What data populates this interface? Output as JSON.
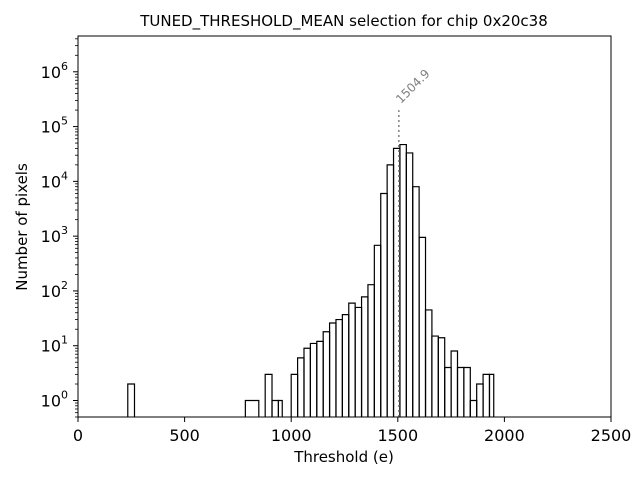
{
  "chart_data": {
    "type": "histogram",
    "title": "TUNED_THRESHOLD_MEAN selection for chip 0x20c38",
    "xlabel": "Threshold (e)",
    "ylabel": "Number of pixels",
    "xlim": [
      0,
      2500
    ],
    "ylim": [
      0.5,
      4500000
    ],
    "yscale": "log",
    "x_ticks": [
      "0",
      "500",
      "1000",
      "1500",
      "2000",
      "2500"
    ],
    "x_tick_values": [
      0,
      500,
      1000,
      1500,
      2000,
      2500
    ],
    "y_ticks": [
      {
        "base": "10",
        "exp": "0",
        "value": 1
      },
      {
        "base": "10",
        "exp": "1",
        "value": 10
      },
      {
        "base": "10",
        "exp": "2",
        "value": 100
      },
      {
        "base": "10",
        "exp": "3",
        "value": 1000
      },
      {
        "base": "10",
        "exp": "4",
        "value": 10000
      },
      {
        "base": "10",
        "exp": "5",
        "value": 100000
      },
      {
        "base": "10",
        "exp": "6",
        "value": 1000000
      }
    ],
    "bins": [
      {
        "x0": 233.5,
        "x1": 265,
        "count": 2
      },
      {
        "x0": 785,
        "x1": 848,
        "count": 1
      },
      {
        "x0": 878,
        "x1": 910,
        "count": 3
      },
      {
        "x0": 910,
        "x1": 940,
        "count": 1
      },
      {
        "x0": 940,
        "x1": 958,
        "count": 1
      },
      {
        "x0": 1000,
        "x1": 1030,
        "count": 3
      },
      {
        "x0": 1030,
        "x1": 1060,
        "count": 6
      },
      {
        "x0": 1060,
        "x1": 1090,
        "count": 9
      },
      {
        "x0": 1090,
        "x1": 1120,
        "count": 11
      },
      {
        "x0": 1120,
        "x1": 1150,
        "count": 12
      },
      {
        "x0": 1150,
        "x1": 1180,
        "count": 18
      },
      {
        "x0": 1180,
        "x1": 1210,
        "count": 26
      },
      {
        "x0": 1210,
        "x1": 1240,
        "count": 30
      },
      {
        "x0": 1240,
        "x1": 1270,
        "count": 37
      },
      {
        "x0": 1270,
        "x1": 1300,
        "count": 60
      },
      {
        "x0": 1300,
        "x1": 1330,
        "count": 50
      },
      {
        "x0": 1330,
        "x1": 1360,
        "count": 78
      },
      {
        "x0": 1360,
        "x1": 1390,
        "count": 130
      },
      {
        "x0": 1390,
        "x1": 1420,
        "count": 680
      },
      {
        "x0": 1420,
        "x1": 1450,
        "count": 6000
      },
      {
        "x0": 1450,
        "x1": 1480,
        "count": 20000
      },
      {
        "x0": 1480,
        "x1": 1510,
        "count": 40000
      },
      {
        "x0": 1510,
        "x1": 1540,
        "count": 47000
      },
      {
        "x0": 1540,
        "x1": 1570,
        "count": 33000
      },
      {
        "x0": 1570,
        "x1": 1600,
        "count": 8000
      },
      {
        "x0": 1600,
        "x1": 1630,
        "count": 950
      },
      {
        "x0": 1630,
        "x1": 1660,
        "count": 45
      },
      {
        "x0": 1660,
        "x1": 1690,
        "count": 15
      },
      {
        "x0": 1690,
        "x1": 1720,
        "count": 14
      },
      {
        "x0": 1720,
        "x1": 1750,
        "count": 4
      },
      {
        "x0": 1750,
        "x1": 1780,
        "count": 8
      },
      {
        "x0": 1780,
        "x1": 1810,
        "count": 4
      },
      {
        "x0": 1810,
        "x1": 1840,
        "count": 4
      },
      {
        "x0": 1840,
        "x1": 1870,
        "count": 1
      },
      {
        "x0": 1870,
        "x1": 1900,
        "count": 2
      },
      {
        "x0": 1900,
        "x1": 1930,
        "count": 3
      },
      {
        "x0": 1930,
        "x1": 1950,
        "count": 3
      }
    ],
    "annotation": {
      "text": "1504.9",
      "x": 1504.9,
      "y_top": 200000,
      "color": "#808080",
      "line_style": "dotted"
    },
    "line_color": "#000000",
    "grid": false
  }
}
